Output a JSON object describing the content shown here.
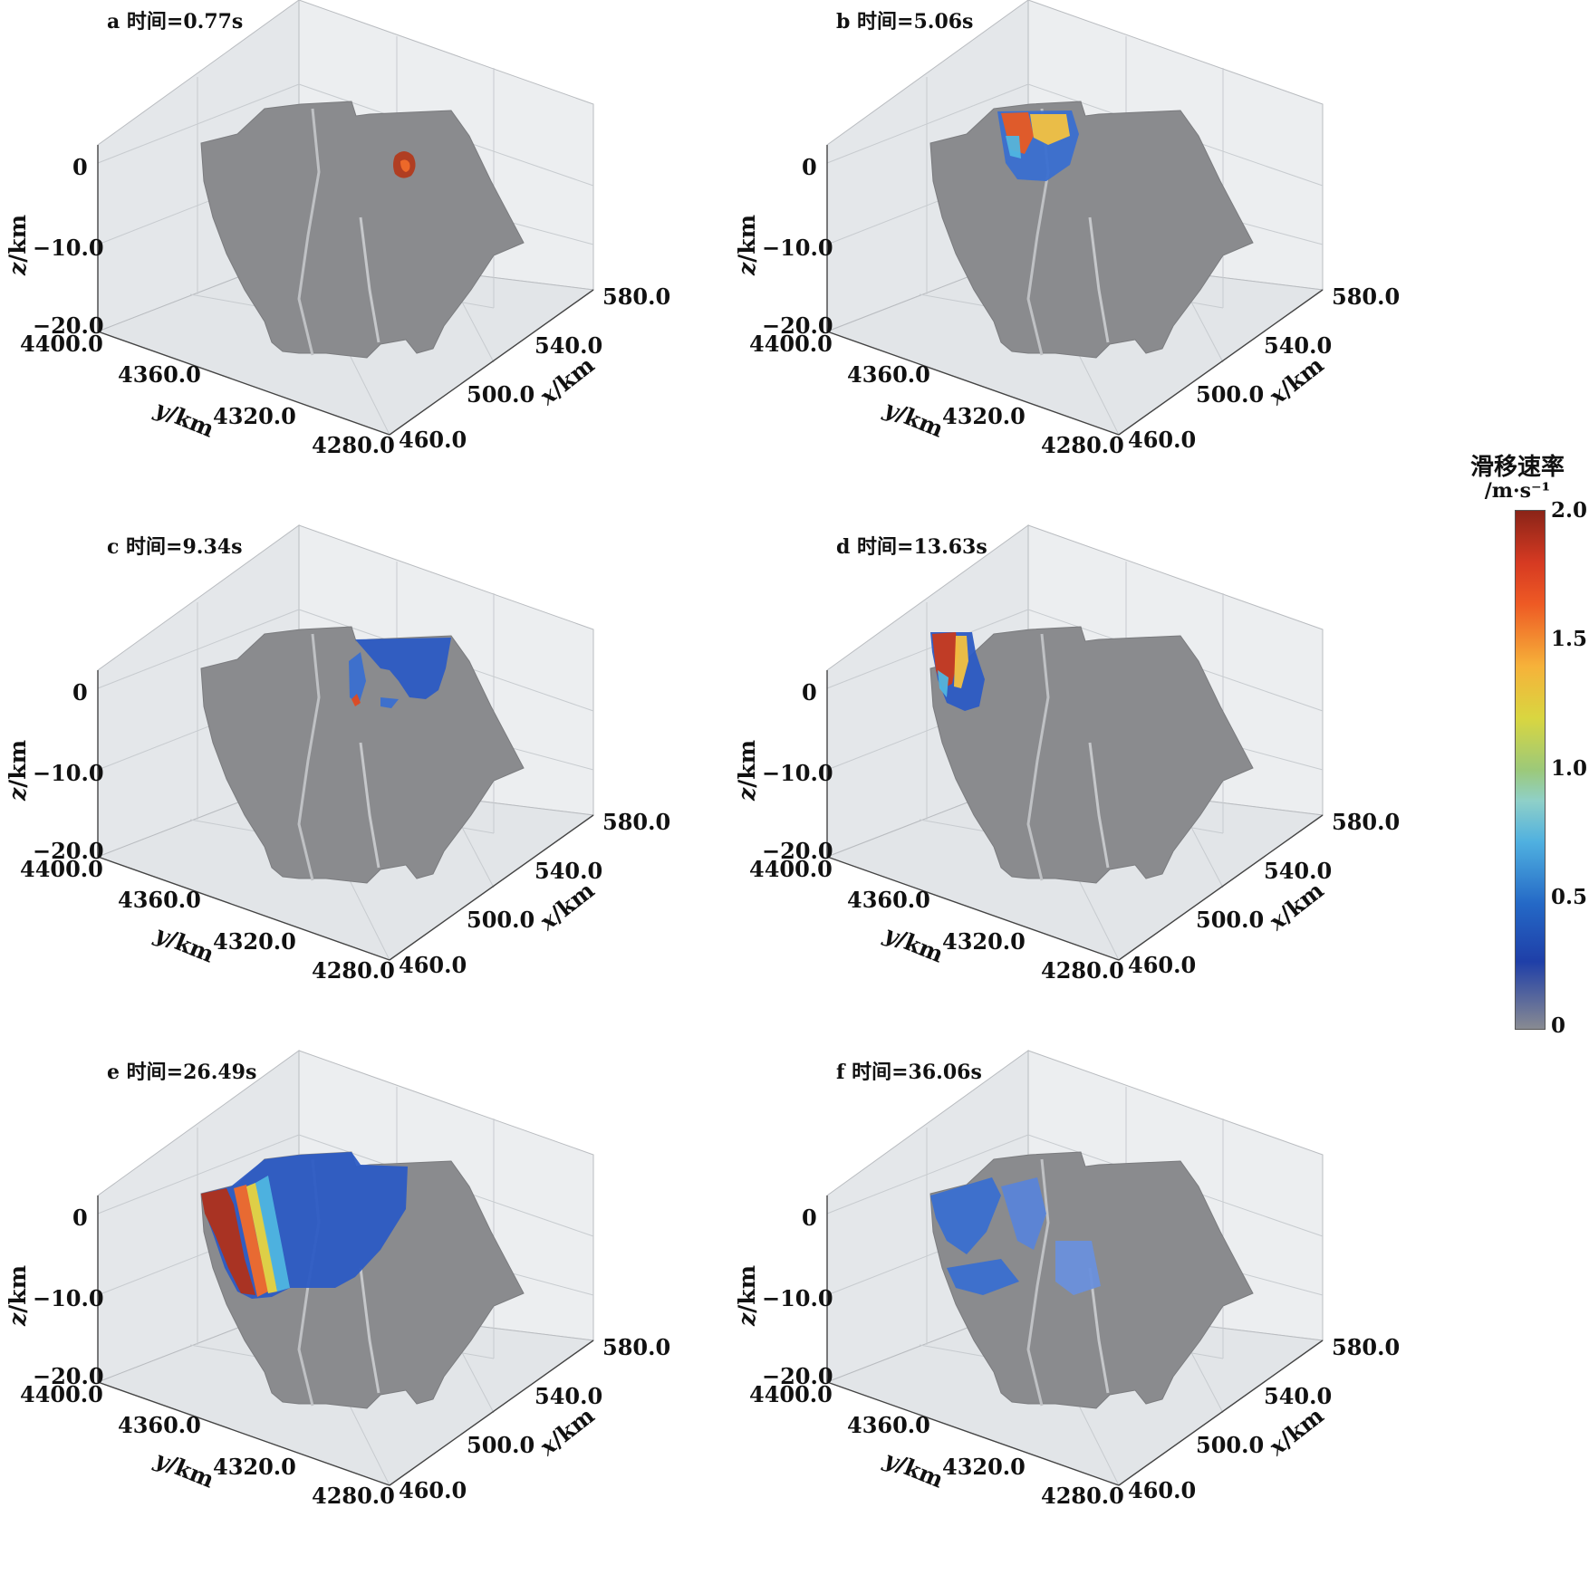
{
  "panels": [
    {
      "label": "a 时间=0.77s",
      "panel": "a"
    },
    {
      "label": "b 时间=5.06s",
      "panel": "b"
    },
    {
      "label": "c 时间=9.34s",
      "panel": "c"
    },
    {
      "label": "d 时间=13.63s",
      "panel": "d"
    },
    {
      "label": "e 时间=26.49s",
      "panel": "e"
    },
    {
      "label": "f 时间=36.06s",
      "panel": "f"
    }
  ],
  "axes": {
    "z_label": "z",
    "z_unit": "/km",
    "y_label": "y",
    "y_unit": "/km",
    "x_label": "x",
    "x_unit": "/km",
    "z_ticks": [
      "0",
      "−10.0",
      "−20.0"
    ],
    "y_ticks": [
      "4400.0",
      "4360.0",
      "4320.0",
      "4280.0"
    ],
    "x_ticks": [
      "460.0",
      "500.0",
      "540.0",
      "580.0"
    ]
  },
  "colorbar": {
    "title": "滑移速率",
    "unit": "/m·s⁻¹",
    "ticks": [
      "2.0",
      "1.5",
      "1.0",
      "0.5",
      "0"
    ],
    "range": [
      0,
      2.0
    ],
    "colors": [
      "#888a92",
      "#1f3fa8",
      "#4fb0e0",
      "#9cc979",
      "#d9d640",
      "#ee5a24",
      "#8a2418"
    ]
  },
  "styles": {
    "fault_gray": "#8a8b8e",
    "box_gray": "#e9ebed",
    "grid": "#c9ccd0"
  }
}
